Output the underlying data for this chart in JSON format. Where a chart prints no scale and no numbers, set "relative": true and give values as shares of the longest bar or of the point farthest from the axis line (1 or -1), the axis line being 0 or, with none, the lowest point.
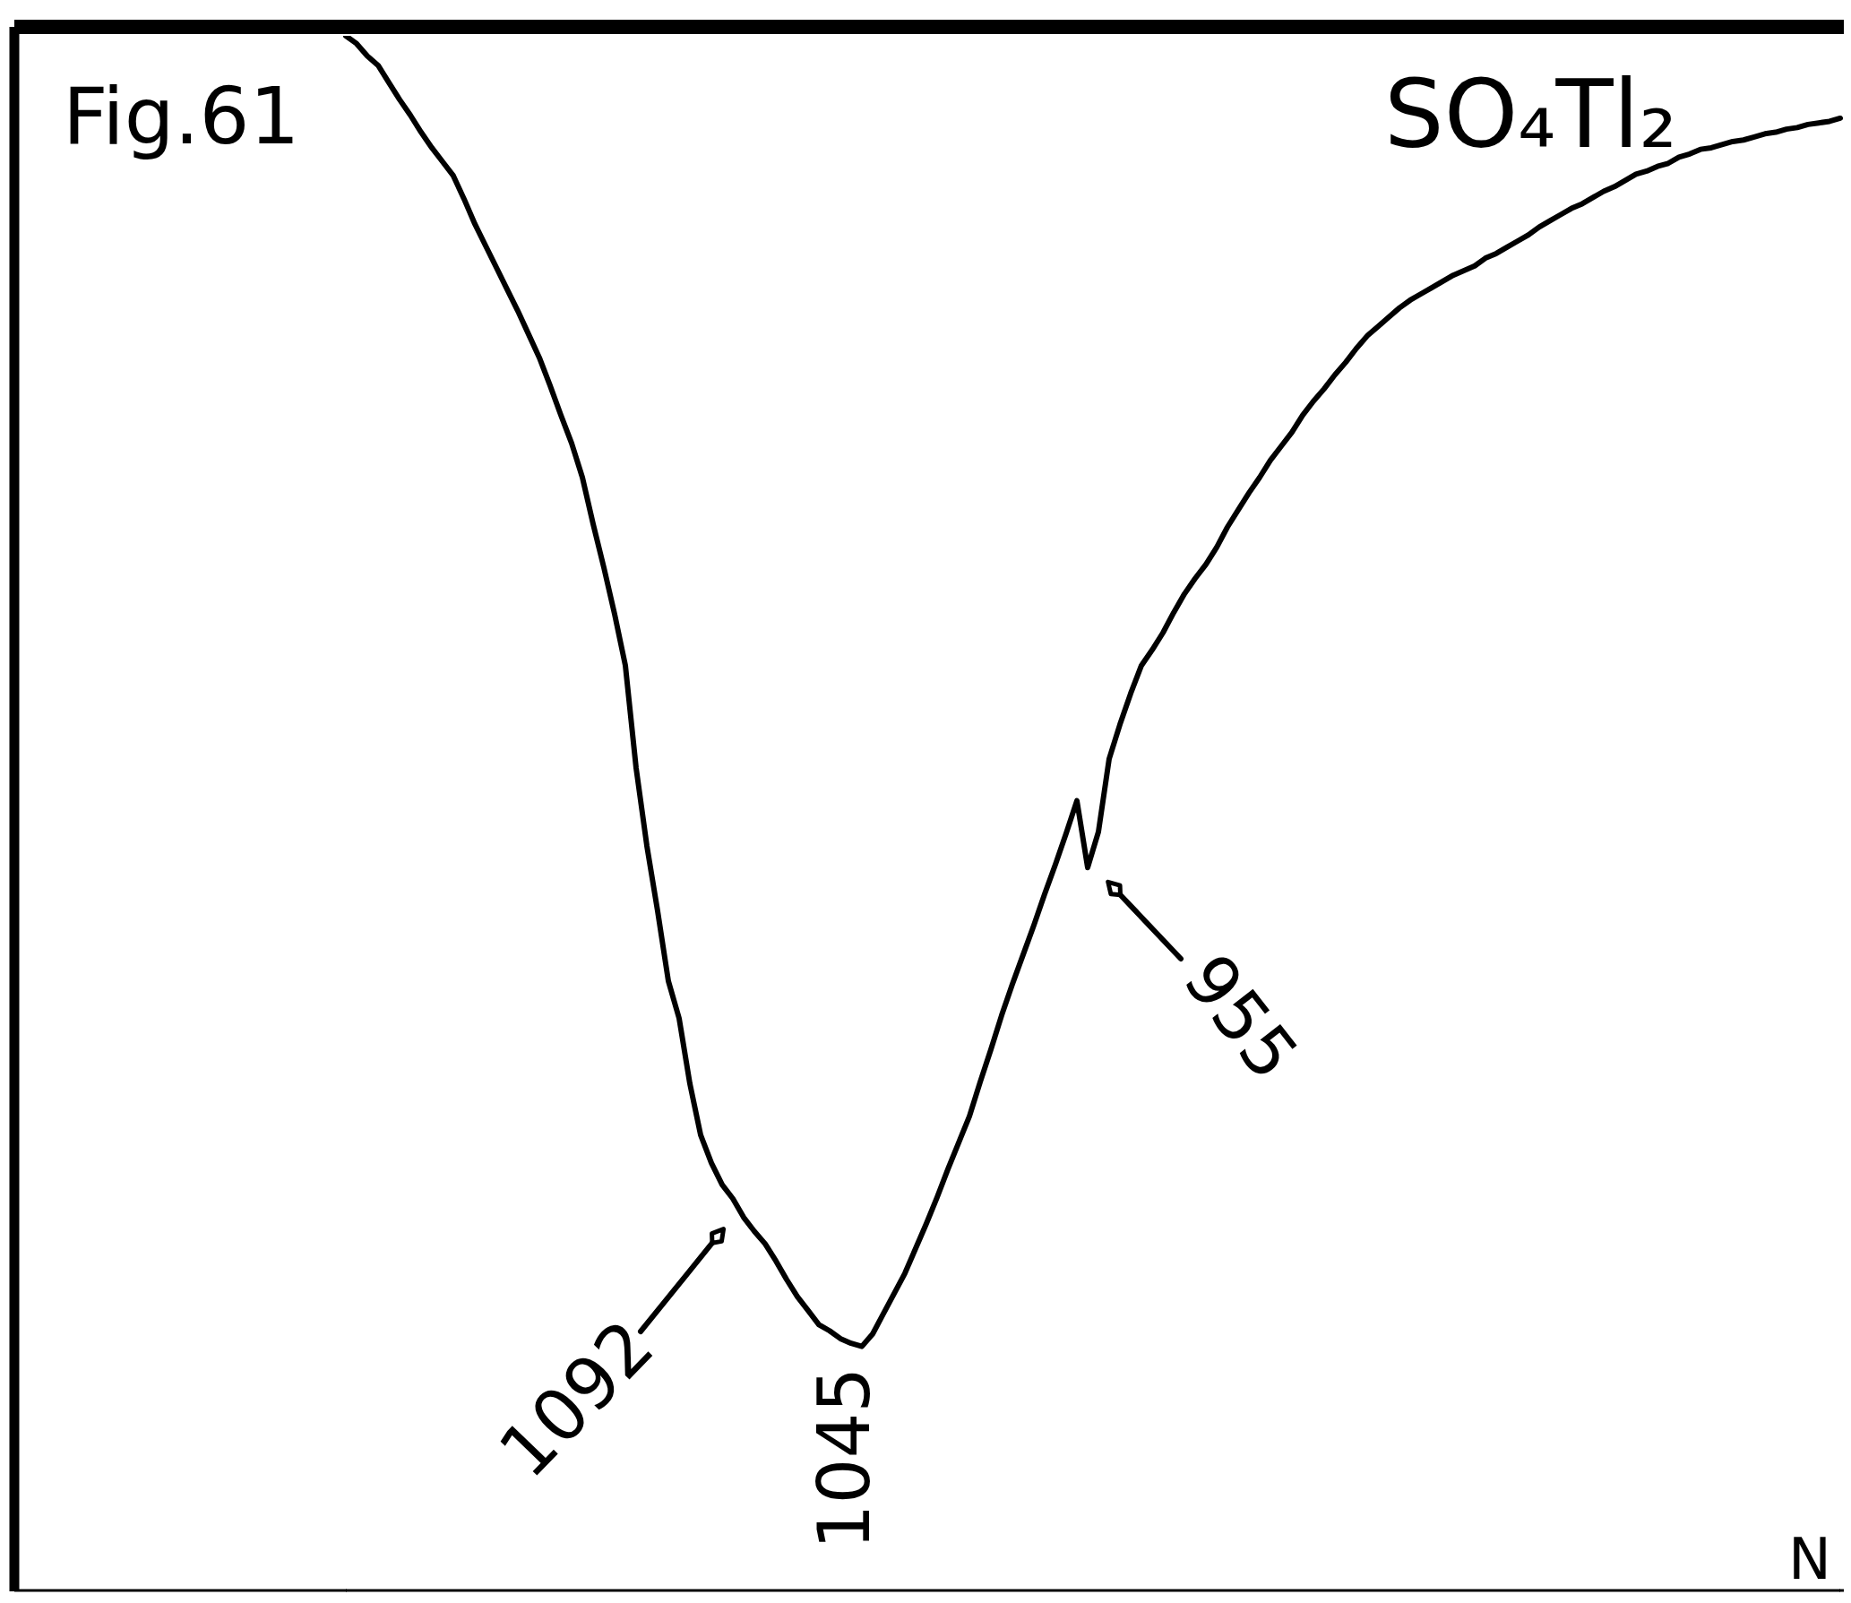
{
  "chart_data": {
    "type": "line",
    "title": "Fig.61",
    "relative": true,
    "categories": [
      null,
      null,
      null,
      null,
      null,
      null,
      null,
      null,
      null,
      null,
      null,
      null,
      null,
      null,
      null,
      null,
      null,
      null,
      null,
      null,
      null,
      null,
      null,
      null,
      null,
      null,
      null,
      null,
      null,
      null,
      null,
      null,
      null,
      null,
      null,
      null,
      null,
      null,
      null,
      null,
      null,
      null,
      null,
      null,
      null,
      null,
      null,
      null,
      null,
      null,
      null,
      null,
      null,
      null,
      null,
      null,
      null,
      null,
      null,
      null,
      null,
      null,
      null,
      null,
      null,
      null,
      null,
      null,
      null,
      null,
      null,
      null,
      null,
      null,
      null,
      null,
      null,
      null,
      null,
      null,
      null,
      null,
      null,
      null,
      null,
      null,
      null,
      null,
      null,
      null,
      null,
      null,
      null,
      null,
      null,
      null,
      null,
      null,
      null,
      null,
      null,
      null,
      null,
      null,
      null,
      null,
      null,
      null,
      null,
      null,
      null,
      null,
      null,
      null,
      null,
      null,
      null,
      null,
      null,
      null,
      null,
      null,
      null,
      null,
      null,
      null,
      null,
      null,
      null,
      null,
      null,
      null,
      null,
      null,
      null,
      null,
      null,
      null,
      null,
      null
    ],
    "series": [
      {
        "name": "SO₄Tl₂",
        "color": "#000000",
        "values": [
          1,
          0.995,
          0.987,
          0.981,
          0.97,
          0.959,
          0.949,
          0.938,
          0.928,
          0.919,
          0.91,
          0.895,
          0.879,
          0.865,
          0.851,
          0.837,
          0.823,
          0.808,
          0.793,
          0.775,
          0.756,
          0.738,
          0.716,
          0.686,
          0.658,
          0.628,
          0.595,
          0.529,
          0.479,
          0.437,
          0.392,
          0.368,
          0.326,
          0.293,
          0.275,
          0.261,
          0.252,
          0.24,
          0.231,
          0.223,
          0.212,
          0.2,
          0.189,
          0.18,
          0.171,
          0.167,
          0.162,
          0.159,
          0.157,
          0.165,
          0.178,
          0.191,
          0.204,
          0.22,
          0.236,
          0.253,
          0.271,
          0.288,
          0.305,
          0.327,
          0.348,
          0.37,
          0.39,
          0.409,
          0.428,
          0.448,
          0.467,
          0.487,
          0.508,
          0.465,
          0.488,
          0.535,
          0.557,
          0.577,
          0.595,
          0.605,
          0.616,
          0.629,
          0.641,
          0.651,
          0.66,
          0.671,
          0.684,
          0.695,
          0.706,
          0.716,
          0.727,
          0.736,
          0.745,
          0.756,
          0.765,
          0.773,
          0.782,
          0.79,
          0.799,
          0.807,
          0.813,
          0.819,
          0.825,
          0.83,
          0.834,
          0.838,
          0.842,
          0.846,
          0.849,
          0.852,
          0.857,
          0.86,
          0.864,
          0.868,
          0.872,
          0.877,
          0.881,
          0.885,
          0.889,
          0.892,
          0.896,
          0.9,
          0.903,
          0.907,
          0.911,
          0.913,
          0.916,
          0.918,
          0.922,
          0.924,
          0.927,
          0.928,
          0.93,
          0.932,
          0.933,
          0.935,
          0.937,
          0.938,
          0.94,
          0.941,
          0.943,
          0.944,
          0.945,
          0.947
        ]
      }
    ],
    "annotations": [
      "1092",
      {
        "text": "1045",
        "y": 0.157
      },
      "955",
      "N"
    ]
  }
}
